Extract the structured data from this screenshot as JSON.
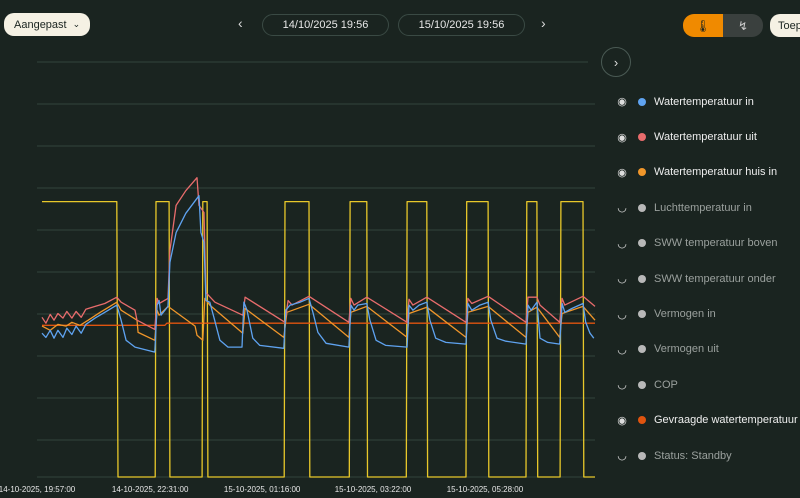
{
  "toolbar": {
    "range_label": "Aangepast",
    "start_date": "14/10/2025 19:56",
    "end_date": "15/10/2025 19:56",
    "apply_label": "Toep"
  },
  "colors": {
    "accent": "#f08a00",
    "background": "#1a2420"
  },
  "legend": [
    {
      "label": "Watertemperatuur in",
      "color": "#5fa3f0",
      "visible": true
    },
    {
      "label": "Watertemperatuur uit",
      "color": "#e86c6c",
      "visible": true
    },
    {
      "label": "Watertemperatuur huis in",
      "color": "#f0962a",
      "visible": true
    },
    {
      "label": "Luchttemperatuur in",
      "color": "#b8b8b8",
      "visible": false
    },
    {
      "label": "SWW temperatuur boven",
      "color": "#b8b8b8",
      "visible": false
    },
    {
      "label": "SWW temperatuur onder",
      "color": "#b8b8b8",
      "visible": false
    },
    {
      "label": "Vermogen in",
      "color": "#b8b8b8",
      "visible": false
    },
    {
      "label": "Vermogen uit",
      "color": "#b8b8b8",
      "visible": false
    },
    {
      "label": "COP",
      "color": "#b8b8b8",
      "visible": false
    },
    {
      "label": "Gevraagde watertemperatuur",
      "color": "#e0540f",
      "visible": true
    },
    {
      "label": "Status: Standby",
      "color": "#b8b8b8",
      "visible": false
    }
  ],
  "chart_data": {
    "type": "line",
    "title": "",
    "xlabel": "",
    "ylabel": "",
    "grid": true,
    "xlim": [
      0,
      1440
    ],
    "ylim": [
      0,
      99
    ],
    "xticks": [
      {
        "x": 0,
        "label": "14-10-2025, 19:57:00"
      },
      {
        "x": 292,
        "label": "14-10-2025, 22:31:00"
      },
      {
        "x": 581,
        "label": "15-10-2025, 01:16:00"
      },
      {
        "x": 867,
        "label": "15-10-2025, 03:22:00"
      },
      {
        "x": 1156,
        "label": "15-10-2025, 05:28:00"
      }
    ],
    "series": [
      {
        "name": "Status",
        "color": "#e8c82a",
        "points": [
          [
            13,
            65.7
          ],
          [
            206,
            65.7
          ],
          [
            209,
            0
          ],
          [
            305,
            0
          ],
          [
            307,
            65.7
          ],
          [
            341,
            65.7
          ],
          [
            343,
            0
          ],
          [
            426,
            0
          ],
          [
            428,
            65.7
          ],
          [
            439,
            65.7
          ],
          [
            441,
            0
          ],
          [
            638,
            0
          ],
          [
            640,
            65.7
          ],
          [
            702,
            65.7
          ],
          [
            704,
            0
          ],
          [
            806,
            0
          ],
          [
            808,
            65.7
          ],
          [
            851,
            65.7
          ],
          [
            853,
            0
          ],
          [
            953,
            0
          ],
          [
            955,
            65.7
          ],
          [
            1006,
            65.7
          ],
          [
            1008,
            0
          ],
          [
            1107,
            0
          ],
          [
            1109,
            65.7
          ],
          [
            1164,
            65.7
          ],
          [
            1166,
            0
          ],
          [
            1262,
            0
          ],
          [
            1264,
            65.7
          ],
          [
            1290,
            65.7
          ],
          [
            1292,
            0
          ],
          [
            1350,
            0
          ],
          [
            1352,
            65.7
          ],
          [
            1409,
            65.7
          ],
          [
            1411,
            0
          ],
          [
            1440,
            0
          ]
        ]
      },
      {
        "name": "Gevraagde watertemperatuur",
        "color": "#e0540f",
        "points": [
          [
            13,
            36.2
          ],
          [
            330,
            36.2
          ],
          [
            335,
            36.7
          ],
          [
            1440,
            36.7
          ]
        ]
      },
      {
        "name": "Watertemperatuur huis in",
        "color": "#f0962a",
        "points": [
          [
            13,
            36
          ],
          [
            34,
            35
          ],
          [
            54,
            36.4
          ],
          [
            75,
            36
          ],
          [
            90,
            36.9
          ],
          [
            111,
            36.2
          ],
          [
            132,
            37.4
          ],
          [
            163,
            39.3
          ],
          [
            188,
            40.7
          ],
          [
            206,
            41.7
          ],
          [
            217,
            39.8
          ],
          [
            258,
            37.4
          ],
          [
            261,
            34.5
          ],
          [
            304,
            32.6
          ],
          [
            310,
            39.8
          ],
          [
            315,
            38.6
          ],
          [
            338,
            40.7
          ],
          [
            408,
            36
          ],
          [
            413,
            33.8
          ],
          [
            428,
            32.6
          ],
          [
            433,
            42.6
          ],
          [
            446,
            41
          ],
          [
            531,
            34.3
          ],
          [
            537,
            40.2
          ],
          [
            637,
            33.3
          ],
          [
            645,
            39.3
          ],
          [
            702,
            41.2
          ],
          [
            805,
            33.3
          ],
          [
            810,
            39.3
          ],
          [
            851,
            40.7
          ],
          [
            955,
            33.3
          ],
          [
            960,
            39
          ],
          [
            1006,
            40.5
          ],
          [
            1107,
            33.3
          ],
          [
            1112,
            39.3
          ],
          [
            1164,
            40.7
          ],
          [
            1262,
            33.3
          ],
          [
            1267,
            39.3
          ],
          [
            1290,
            40.5
          ],
          [
            1349,
            33.3
          ],
          [
            1355,
            39
          ],
          [
            1409,
            40.7
          ],
          [
            1440,
            37.4
          ]
        ]
      },
      {
        "name": "Watertemperatuur uit",
        "color": "#e86c6c",
        "points": [
          [
            13,
            38.1
          ],
          [
            23,
            36.7
          ],
          [
            34,
            38.8
          ],
          [
            44,
            37.4
          ],
          [
            54,
            39
          ],
          [
            67,
            37.9
          ],
          [
            77,
            39.5
          ],
          [
            90,
            37.9
          ],
          [
            101,
            39.5
          ],
          [
            114,
            38.1
          ],
          [
            126,
            40
          ],
          [
            150,
            40.7
          ],
          [
            175,
            41.4
          ],
          [
            206,
            42.9
          ],
          [
            217,
            41.7
          ],
          [
            253,
            39.8
          ],
          [
            258,
            37.4
          ],
          [
            304,
            35.2
          ],
          [
            310,
            42.6
          ],
          [
            315,
            41.4
          ],
          [
            338,
            42.6
          ],
          [
            343,
            54
          ],
          [
            359,
            64.8
          ],
          [
            384,
            68.3
          ],
          [
            413,
            71.4
          ],
          [
            418,
            64.8
          ],
          [
            431,
            63.1
          ],
          [
            436,
            44
          ],
          [
            459,
            41.7
          ],
          [
            531,
            38.6
          ],
          [
            537,
            42.9
          ],
          [
            640,
            36.9
          ],
          [
            648,
            42.1
          ],
          [
            658,
            41
          ],
          [
            702,
            43.1
          ],
          [
            805,
            36.9
          ],
          [
            810,
            42.6
          ],
          [
            818,
            41
          ],
          [
            851,
            42.9
          ],
          [
            955,
            36.9
          ],
          [
            960,
            42.4
          ],
          [
            970,
            41
          ],
          [
            1006,
            42.9
          ],
          [
            1107,
            36.9
          ],
          [
            1112,
            42.6
          ],
          [
            1122,
            41.4
          ],
          [
            1164,
            43.1
          ],
          [
            1262,
            36.9
          ],
          [
            1267,
            42.9
          ],
          [
            1290,
            42.9
          ],
          [
            1298,
            41
          ],
          [
            1349,
            36.9
          ],
          [
            1355,
            42.6
          ],
          [
            1362,
            41
          ],
          [
            1409,
            43.1
          ],
          [
            1440,
            40.7
          ]
        ]
      },
      {
        "name": "Watertemperatuur in",
        "color": "#5fa3f0",
        "points": [
          [
            13,
            34.3
          ],
          [
            23,
            33.3
          ],
          [
            34,
            35
          ],
          [
            44,
            33.1
          ],
          [
            54,
            35
          ],
          [
            67,
            33.3
          ],
          [
            77,
            35.5
          ],
          [
            90,
            34
          ],
          [
            101,
            36
          ],
          [
            114,
            34.3
          ],
          [
            126,
            36.4
          ],
          [
            150,
            37.9
          ],
          [
            175,
            39.3
          ],
          [
            206,
            41
          ],
          [
            217,
            37.4
          ],
          [
            230,
            32.6
          ],
          [
            253,
            31
          ],
          [
            304,
            29.8
          ],
          [
            310,
            41
          ],
          [
            315,
            42.1
          ],
          [
            320,
            38.6
          ],
          [
            338,
            40.7
          ],
          [
            343,
            51.2
          ],
          [
            359,
            58.3
          ],
          [
            384,
            62.9
          ],
          [
            418,
            67.1
          ],
          [
            423,
            58.3
          ],
          [
            431,
            56
          ],
          [
            436,
            42.1
          ],
          [
            446,
            41.7
          ],
          [
            457,
            37.9
          ],
          [
            472,
            32.6
          ],
          [
            493,
            31
          ],
          [
            529,
            31
          ],
          [
            534,
            41.7
          ],
          [
            542,
            39.8
          ],
          [
            557,
            33.1
          ],
          [
            575,
            31.4
          ],
          [
            637,
            30.7
          ],
          [
            642,
            39.8
          ],
          [
            653,
            41
          ],
          [
            679,
            41.7
          ],
          [
            702,
            42.6
          ],
          [
            712,
            39.3
          ],
          [
            725,
            34.5
          ],
          [
            746,
            31.9
          ],
          [
            805,
            31
          ],
          [
            810,
            41
          ],
          [
            818,
            39.8
          ],
          [
            828,
            41
          ],
          [
            851,
            41.4
          ],
          [
            859,
            37.4
          ],
          [
            875,
            32.6
          ],
          [
            900,
            31.4
          ],
          [
            955,
            31
          ],
          [
            960,
            41
          ],
          [
            970,
            39.8
          ],
          [
            986,
            41
          ],
          [
            1006,
            41.7
          ],
          [
            1014,
            37.4
          ],
          [
            1029,
            33.1
          ],
          [
            1055,
            32.1
          ],
          [
            1107,
            31.7
          ],
          [
            1112,
            41.4
          ],
          [
            1122,
            39.8
          ],
          [
            1143,
            41
          ],
          [
            1164,
            41.7
          ],
          [
            1171,
            37.4
          ],
          [
            1187,
            33.1
          ],
          [
            1210,
            32.4
          ],
          [
            1262,
            31.7
          ],
          [
            1267,
            41
          ],
          [
            1275,
            39.8
          ],
          [
            1290,
            41.7
          ],
          [
            1298,
            33.1
          ],
          [
            1318,
            32.1
          ],
          [
            1349,
            31.7
          ],
          [
            1355,
            41.4
          ],
          [
            1362,
            39.3
          ],
          [
            1380,
            40.2
          ],
          [
            1409,
            41.4
          ],
          [
            1416,
            36.9
          ],
          [
            1427,
            34.3
          ],
          [
            1437,
            33.1
          ]
        ]
      }
    ]
  }
}
